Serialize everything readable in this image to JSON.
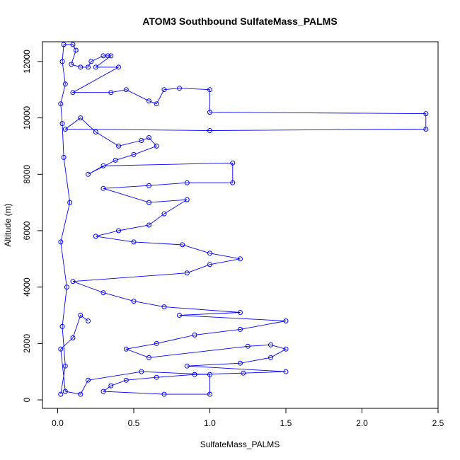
{
  "chart_data": {
    "type": "scatter",
    "title": "ATOM3 Southbound SulfateMass_PALMS",
    "xlabel": "SulfateMass_PALMS",
    "ylabel": "Altitude (m)",
    "xlim": [
      -0.1,
      2.5
    ],
    "ylim": [
      -300,
      12700
    ],
    "x_ticks": [
      0.0,
      0.5,
      1.0,
      1.5,
      2.0,
      2.5
    ],
    "x_tick_labels": [
      "0.0",
      "0.5",
      "1.0",
      "1.5",
      "2.0",
      "2.5"
    ],
    "y_ticks": [
      0,
      2000,
      4000,
      6000,
      8000,
      10000,
      12000
    ],
    "y_tick_labels": [
      "0",
      "2000",
      "4000",
      "6000",
      "8000",
      "10000",
      "12000"
    ],
    "grid": false,
    "series_color": "#0000ff",
    "style": "points connected by lines (open circles)",
    "series": [
      {
        "points": [
          [
            0.02,
            200
          ],
          [
            0.05,
            1200
          ],
          [
            0.03,
            2600
          ],
          [
            0.06,
            4000
          ],
          [
            0.02,
            5600
          ],
          [
            0.08,
            7000
          ],
          [
            0.04,
            8600
          ],
          [
            0.03,
            9800
          ],
          [
            0.02,
            10500
          ],
          [
            0.05,
            11200
          ],
          [
            0.03,
            12000
          ],
          [
            0.04,
            12600
          ],
          [
            0.1,
            12600
          ],
          [
            0.12,
            12400
          ],
          [
            0.09,
            11900
          ],
          [
            0.15,
            11800
          ],
          [
            0.2,
            11800
          ],
          [
            0.22,
            12000
          ],
          [
            0.3,
            12200
          ],
          [
            0.33,
            12200
          ],
          [
            0.35,
            12200
          ],
          [
            0.25,
            11800
          ],
          [
            0.4,
            11800
          ],
          [
            0.1,
            10900
          ],
          [
            0.35,
            10900
          ],
          [
            0.45,
            11000
          ],
          [
            0.6,
            10600
          ],
          [
            0.65,
            10500
          ],
          [
            0.7,
            11000
          ],
          [
            0.8,
            11050
          ],
          [
            1.0,
            11000
          ],
          [
            1.0,
            10200
          ],
          [
            2.42,
            10150
          ],
          [
            2.42,
            9600
          ],
          [
            1.0,
            9550
          ],
          [
            0.05,
            9600
          ],
          [
            0.15,
            10000
          ],
          [
            0.25,
            9500
          ],
          [
            0.4,
            9000
          ],
          [
            0.55,
            9200
          ],
          [
            0.6,
            9300
          ],
          [
            0.65,
            9000
          ],
          [
            0.5,
            8700
          ],
          [
            0.38,
            8500
          ],
          [
            0.2,
            8000
          ],
          [
            0.3,
            8300
          ],
          [
            1.15,
            8400
          ],
          [
            1.15,
            7700
          ],
          [
            0.85,
            7700
          ],
          [
            0.6,
            7600
          ],
          [
            0.3,
            7500
          ],
          [
            0.6,
            7000
          ],
          [
            0.85,
            7100
          ],
          [
            0.7,
            6600
          ],
          [
            0.6,
            6200
          ],
          [
            0.4,
            6000
          ],
          [
            0.25,
            5800
          ],
          [
            0.5,
            5600
          ],
          [
            0.82,
            5500
          ],
          [
            1.0,
            5200
          ],
          [
            1.2,
            5000
          ],
          [
            1.0,
            4800
          ],
          [
            0.85,
            4500
          ],
          [
            0.1,
            4200
          ],
          [
            0.3,
            3800
          ],
          [
            0.5,
            3500
          ],
          [
            0.7,
            3300
          ],
          [
            1.2,
            3100
          ],
          [
            0.8,
            3000
          ],
          [
            1.5,
            2800
          ],
          [
            1.2,
            2500
          ],
          [
            0.9,
            2300
          ],
          [
            0.65,
            2000
          ],
          [
            0.45,
            1800
          ],
          [
            0.6,
            1500
          ],
          [
            1.25,
            1900
          ],
          [
            1.4,
            1950
          ],
          [
            1.5,
            1800
          ],
          [
            1.4,
            1500
          ],
          [
            1.2,
            1300
          ],
          [
            0.85,
            1200
          ],
          [
            1.5,
            1000
          ],
          [
            1.22,
            950
          ],
          [
            0.9,
            900
          ],
          [
            0.65,
            800
          ],
          [
            0.45,
            700
          ],
          [
            0.35,
            500
          ],
          [
            0.3,
            300
          ],
          [
            0.7,
            200
          ],
          [
            1.0,
            200
          ],
          [
            1.0,
            900
          ],
          [
            0.55,
            1000
          ],
          [
            0.2,
            700
          ],
          [
            0.15,
            200
          ],
          [
            0.05,
            300
          ],
          [
            0.02,
            1800
          ],
          [
            0.1,
            2200
          ],
          [
            0.15,
            3000
          ],
          [
            0.2,
            2800
          ]
        ]
      }
    ]
  }
}
